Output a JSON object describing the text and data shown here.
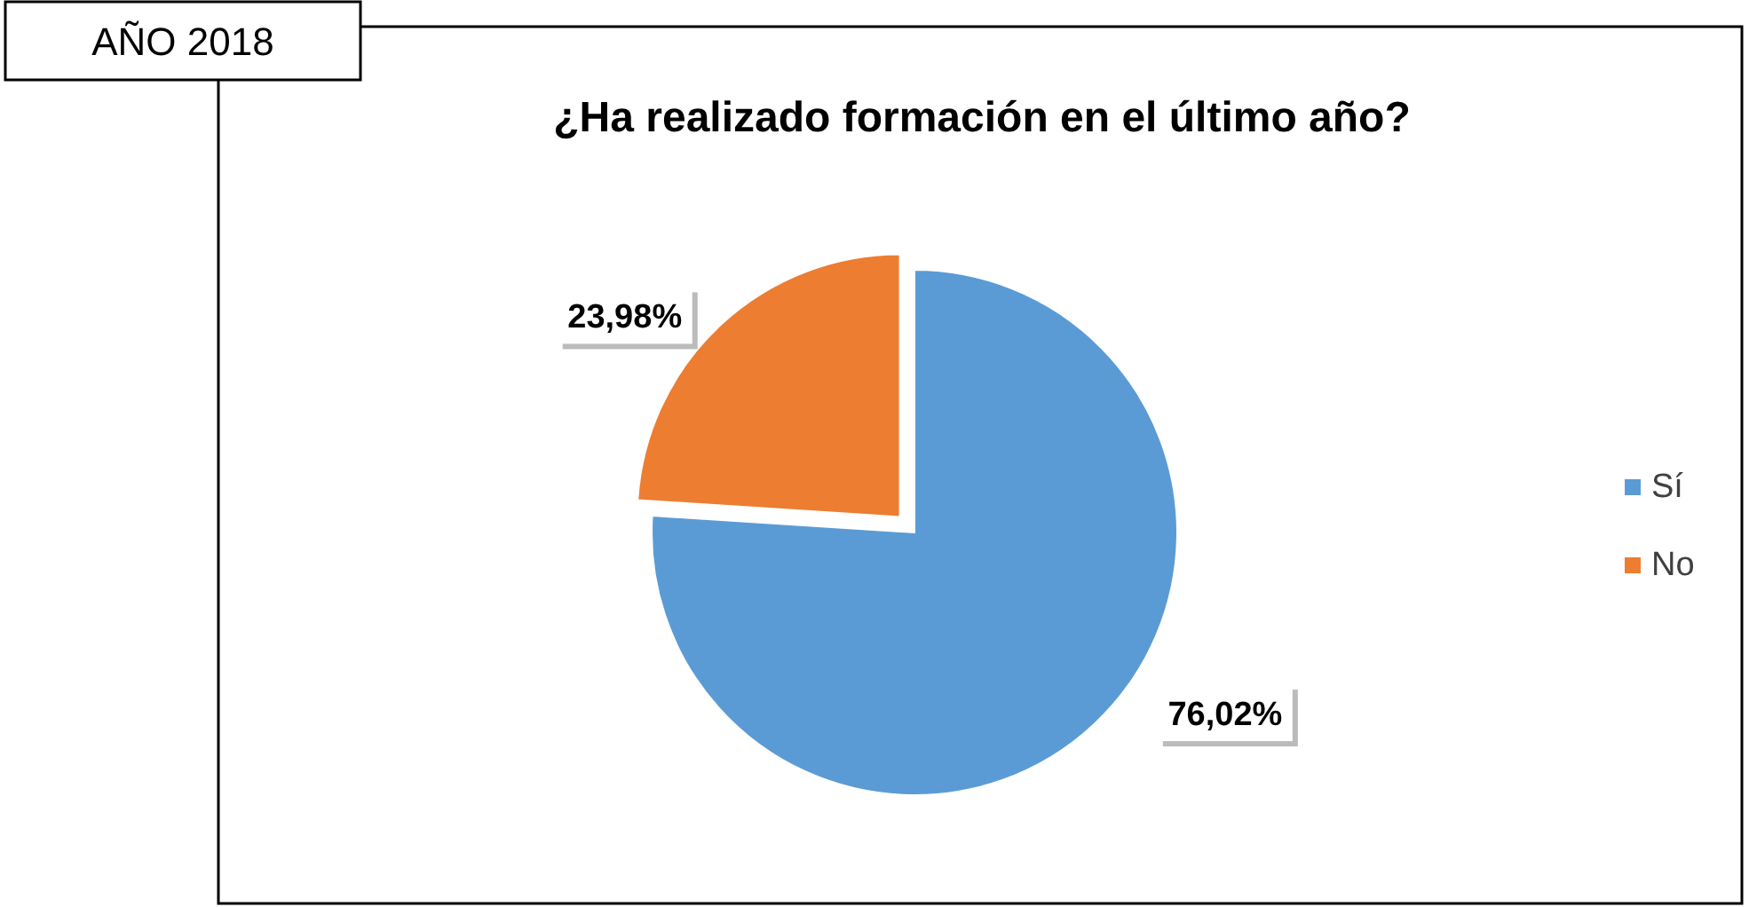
{
  "chart_data": {
    "type": "pie",
    "title": "¿Ha realizado formación en el último año?",
    "categories": [
      "Sí",
      "No"
    ],
    "values": [
      76.02,
      23.98
    ],
    "colors": [
      "#5b9bd5",
      "#ed7d31"
    ],
    "value_labels": [
      "76,02%",
      "23,98%"
    ],
    "legend": "right",
    "annotations": [
      "AÑO 2018"
    ]
  }
}
